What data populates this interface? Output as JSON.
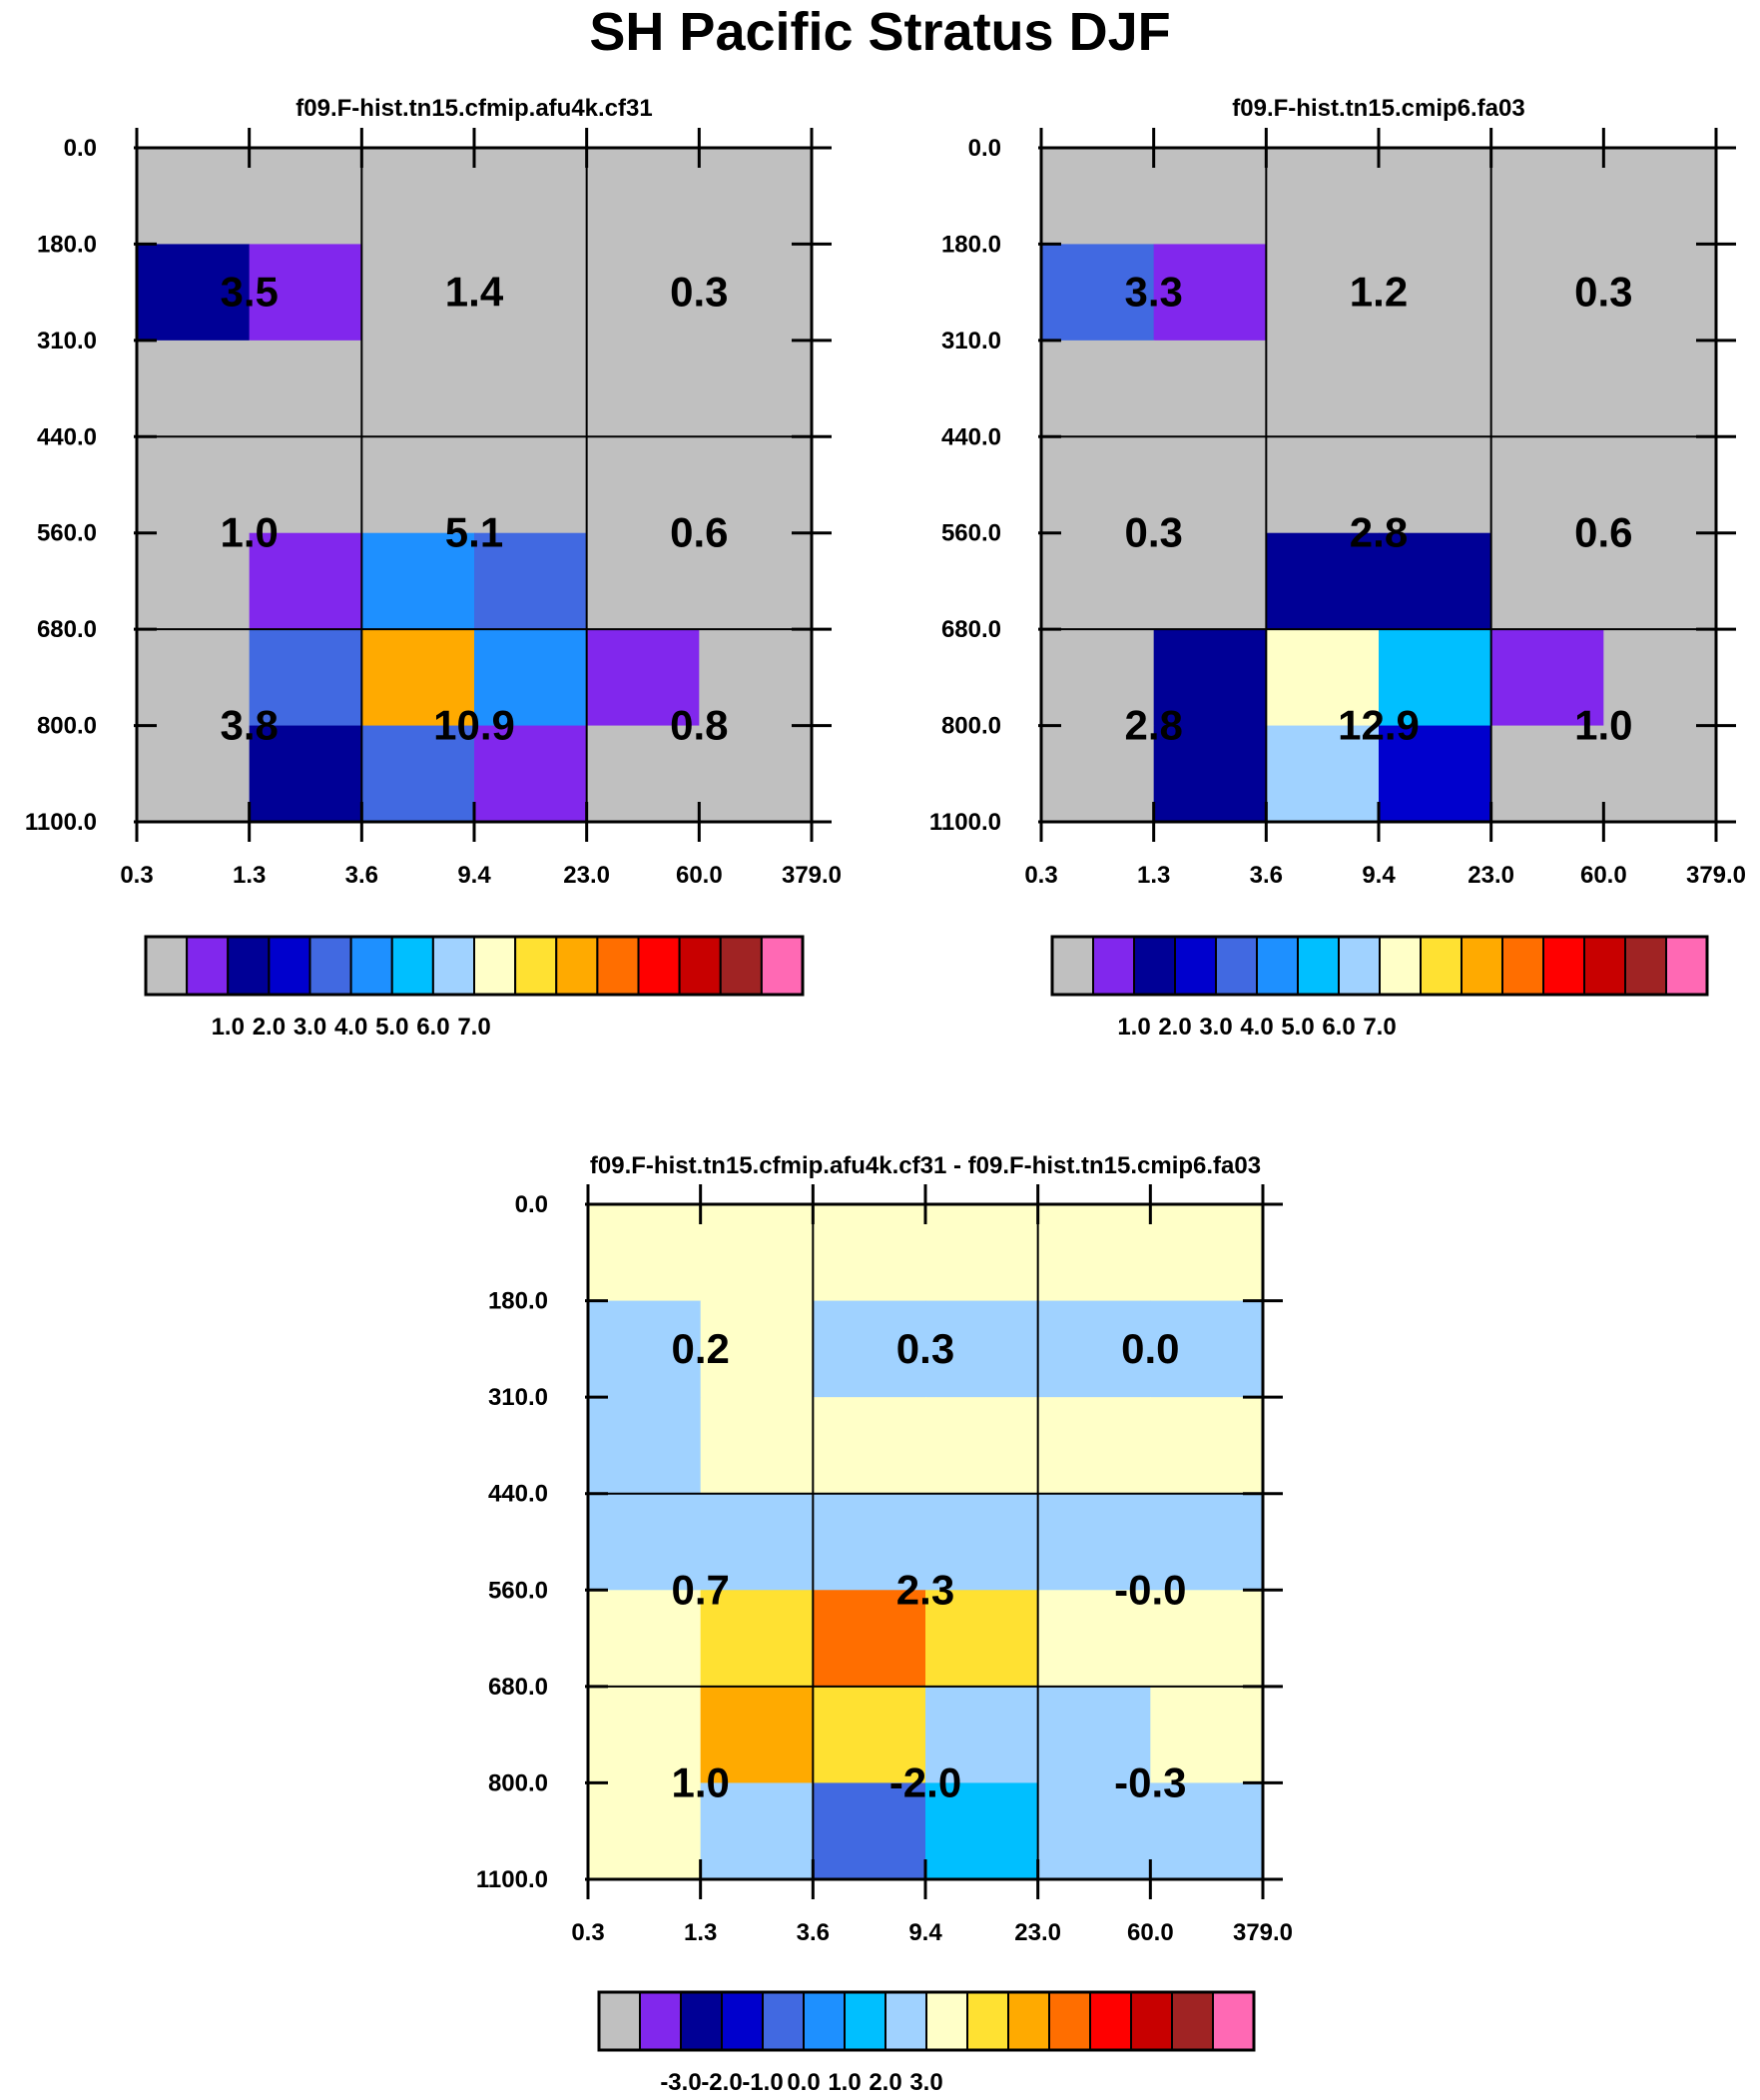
{
  "title": "SH Pacific Stratus DJF",
  "chart_data": [
    {
      "type": "heatmap",
      "title": "f09.F-hist.tn15.cfmip.afu4k.cf31",
      "xticks": [
        "0.3",
        "1.3",
        "3.6",
        "9.4",
        "23.0",
        "60.0",
        "379.0"
      ],
      "yticks": [
        "0.0",
        "180.0",
        "310.0",
        "440.0",
        "560.0",
        "680.0",
        "800.0",
        "1100.0"
      ],
      "cells": [
        [
          0,
          0,
          0,
          0,
          0,
          0
        ],
        [
          2,
          1,
          0,
          0,
          0,
          0
        ],
        [
          0,
          0,
          0,
          0,
          0,
          0
        ],
        [
          0,
          0,
          0,
          0,
          0,
          0
        ],
        [
          0,
          1,
          5,
          4,
          0,
          0
        ],
        [
          0,
          4,
          10,
          5,
          1,
          0
        ],
        [
          0,
          2,
          4,
          1,
          0,
          0
        ]
      ],
      "annotations": [
        [
          "3.5",
          "1.4",
          "0.3"
        ],
        [
          "1.0",
          "5.1",
          "0.6"
        ],
        [
          "3.8",
          "10.9",
          "0.8"
        ]
      ],
      "colorbar": {
        "labels": [
          "1.0",
          "2.0",
          "3.0",
          "4.0",
          "5.0",
          "6.0",
          "7.0"
        ],
        "colors": [
          "#c0c0c0",
          "#8127ed",
          "#000096",
          "#0000cd",
          "#4169e1",
          "#1e90ff",
          "#00bfff",
          "#a0d2ff",
          "#ffffc8",
          "#ffe132",
          "#ffaa00",
          "#ff6e00",
          "#ff0000",
          "#c80000",
          "#a02323",
          "#ff69b4"
        ]
      }
    },
    {
      "type": "heatmap",
      "title": "f09.F-hist.tn15.cmip6.fa03",
      "xticks": [
        "0.3",
        "1.3",
        "3.6",
        "9.4",
        "23.0",
        "60.0",
        "379.0"
      ],
      "yticks": [
        "0.0",
        "180.0",
        "310.0",
        "440.0",
        "560.0",
        "680.0",
        "800.0",
        "1100.0"
      ],
      "cells": [
        [
          0,
          0,
          0,
          0,
          0,
          0
        ],
        [
          4,
          1,
          0,
          0,
          0,
          0
        ],
        [
          0,
          0,
          0,
          0,
          0,
          0
        ],
        [
          0,
          0,
          0,
          0,
          0,
          0
        ],
        [
          0,
          0,
          2,
          2,
          0,
          0
        ],
        [
          0,
          2,
          8,
          6,
          1,
          0
        ],
        [
          0,
          2,
          7,
          3,
          0,
          0
        ]
      ],
      "annotations": [
        [
          "3.3",
          "1.2",
          "0.3"
        ],
        [
          "0.3",
          "2.8",
          "0.6"
        ],
        [
          "2.8",
          "12.9",
          "1.0"
        ]
      ],
      "colorbar": {
        "labels": [
          "1.0",
          "2.0",
          "3.0",
          "4.0",
          "5.0",
          "6.0",
          "7.0"
        ],
        "colors": [
          "#c0c0c0",
          "#8127ed",
          "#000096",
          "#0000cd",
          "#4169e1",
          "#1e90ff",
          "#00bfff",
          "#a0d2ff",
          "#ffffc8",
          "#ffe132",
          "#ffaa00",
          "#ff6e00",
          "#ff0000",
          "#c80000",
          "#a02323",
          "#ff69b4"
        ]
      }
    },
    {
      "type": "heatmap",
      "title": "f09.F-hist.tn15.cfmip.afu4k.cf31 - f09.F-hist.tn15.cmip6.fa03",
      "xticks": [
        "0.3",
        "1.3",
        "3.6",
        "9.4",
        "23.0",
        "60.0",
        "379.0"
      ],
      "yticks": [
        "0.0",
        "180.0",
        "310.0",
        "440.0",
        "560.0",
        "680.0",
        "800.0",
        "1100.0"
      ],
      "cells": [
        [
          8,
          8,
          8,
          8,
          8,
          8
        ],
        [
          7,
          8,
          7,
          7,
          7,
          7
        ],
        [
          7,
          8,
          8,
          8,
          8,
          8
        ],
        [
          7,
          7,
          7,
          7,
          7,
          7
        ],
        [
          8,
          9,
          11,
          9,
          8,
          8
        ],
        [
          8,
          10,
          9,
          7,
          7,
          8
        ],
        [
          8,
          7,
          4,
          6,
          7,
          7
        ]
      ],
      "annotations": [
        [
          "0.2",
          "0.3",
          "0.0"
        ],
        [
          "0.7",
          "2.3",
          "-0.0"
        ],
        [
          "1.0",
          "-2.0",
          "-0.3"
        ]
      ],
      "colorbar": {
        "labels": [
          "-3.0",
          "-2.0",
          "-1.0",
          "0.0",
          "1.0",
          "2.0",
          "3.0"
        ],
        "colors": [
          "#c0c0c0",
          "#8127ed",
          "#000096",
          "#0000cd",
          "#4169e1",
          "#1e90ff",
          "#00bfff",
          "#a0d2ff",
          "#ffffc8",
          "#ffe132",
          "#ffaa00",
          "#ff6e00",
          "#ff0000",
          "#c80000",
          "#a02323",
          "#ff69b4"
        ]
      }
    }
  ]
}
